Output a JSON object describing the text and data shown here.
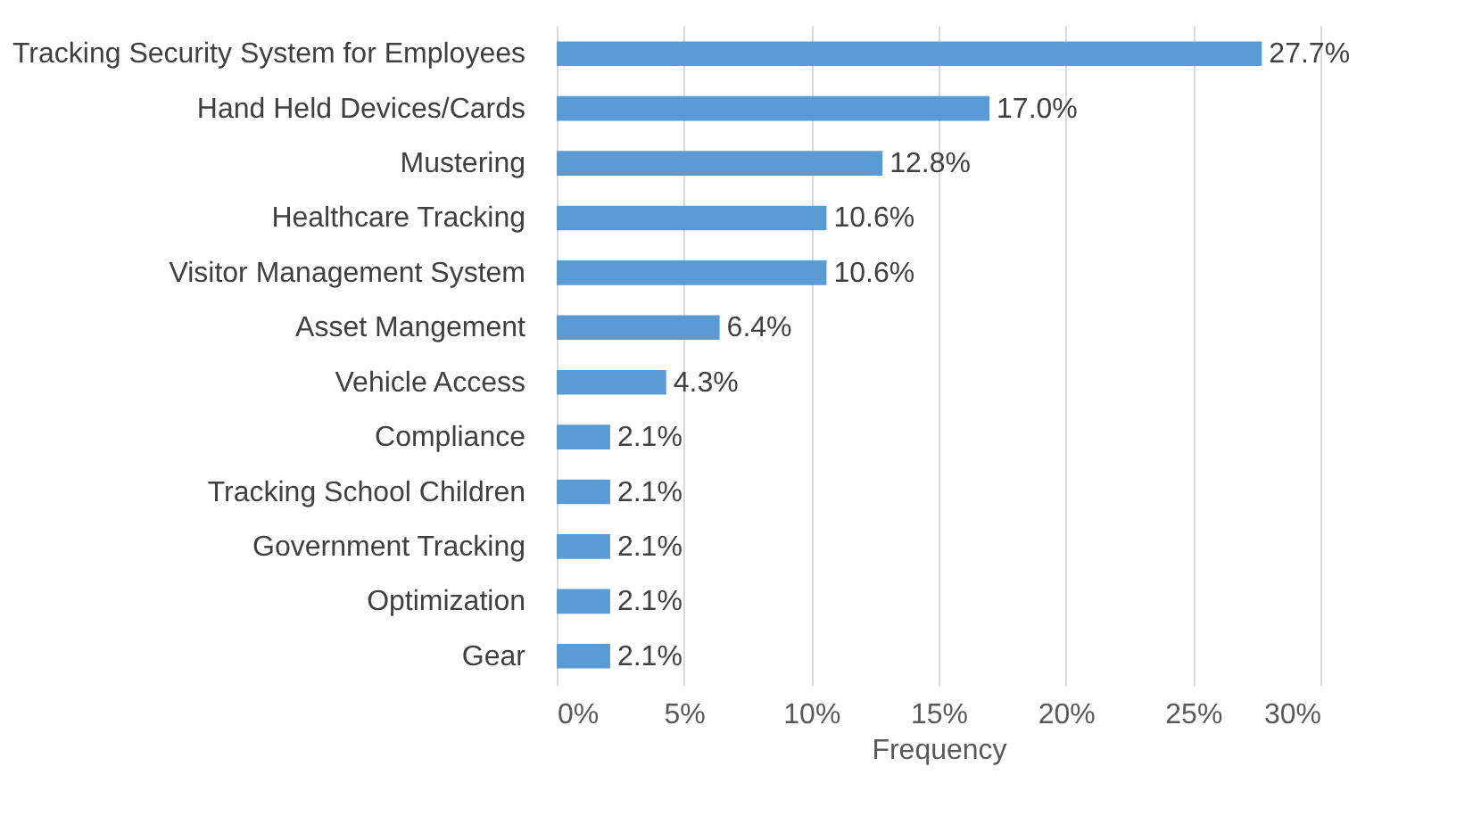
{
  "chart_data": {
    "type": "bar",
    "orientation": "horizontal",
    "xlabel": "Frequency",
    "categories": [
      "Tracking Security System for Employees",
      "Hand Held Devices/Cards",
      "Mustering",
      "Healthcare Tracking",
      "Visitor Management System",
      "Asset Mangement",
      "Vehicle Access",
      "Compliance",
      "Tracking School Children",
      "Government Tracking",
      "Optimization",
      "Gear"
    ],
    "values": [
      27.7,
      17.0,
      12.8,
      10.6,
      10.6,
      6.4,
      4.3,
      2.1,
      2.1,
      2.1,
      2.1,
      2.1
    ],
    "value_labels": [
      "27.7%",
      "17.0%",
      "12.8%",
      "10.6%",
      "10.6%",
      "6.4%",
      "4.3%",
      "2.1%",
      "2.1%",
      "2.1%",
      "2.1%",
      "2.1%"
    ],
    "color": "#5b9bd5",
    "xlim": [
      0,
      30
    ],
    "xticks": [
      {
        "value": 0,
        "label": "0%"
      },
      {
        "value": 5,
        "label": "5%"
      },
      {
        "value": 10,
        "label": "10%"
      },
      {
        "value": 15,
        "label": "15%"
      },
      {
        "value": 20,
        "label": "20%"
      },
      {
        "value": 25,
        "label": "25%"
      },
      {
        "value": 30,
        "label": "30%"
      }
    ],
    "grid": "x"
  }
}
